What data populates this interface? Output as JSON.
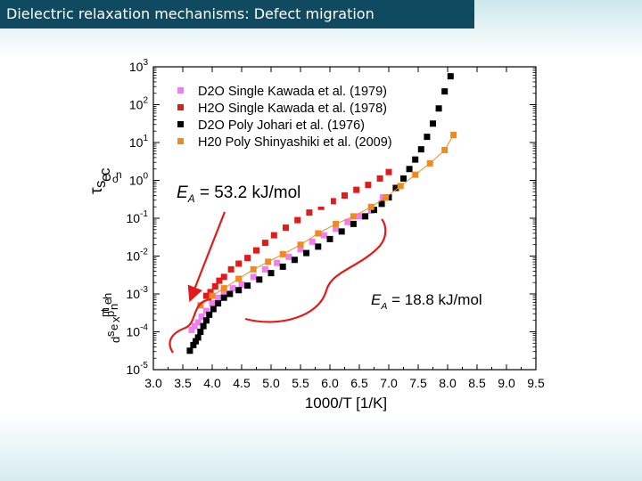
{
  "slide_title": "Dielectric relaxation mechanisms: Defect migration",
  "chart_data": {
    "type": "scatter",
    "xlabel": "1000/T  [1/K]",
    "ylabel": "τ [s]",
    "ylabel_fragments": [
      "τ",
      "s",
      "e",
      "c",
      "o",
      "n",
      "d",
      "s",
      "e",
      "x",
      "p",
      "n",
      "e",
      "t",
      "h",
      "m"
    ],
    "xlim": [
      3.0,
      9.5
    ],
    "ylim_log10": [
      -5,
      3
    ],
    "x_ticks": [
      "3.0",
      "3.5",
      "4.0",
      "4.5",
      "5.0",
      "5.5",
      "6.0",
      "6.5",
      "7.0",
      "7.5",
      "8.0",
      "8.5",
      "9.0",
      "9.5"
    ],
    "y_ticks": [
      {
        "base": "10",
        "exp": "3"
      },
      {
        "base": "10",
        "exp": "2"
      },
      {
        "base": "10",
        "exp": "1"
      },
      {
        "base": "10",
        "exp": "0"
      },
      {
        "base": "10",
        "exp": "-1"
      },
      {
        "base": "10",
        "exp": "-2"
      },
      {
        "base": "10",
        "exp": "-3"
      },
      {
        "base": "10",
        "exp": "-4"
      },
      {
        "base": "10",
        "exp": "-5"
      }
    ],
    "legend_position": "top-left",
    "series": [
      {
        "name": "D2O Single Kawada et al. (1979)",
        "color": "#f07ef0",
        "marker": "square",
        "points": [
          [
            3.65,
            -3.95
          ],
          [
            3.7,
            -3.85
          ],
          [
            3.76,
            -3.75
          ],
          [
            3.82,
            -3.6
          ],
          [
            3.9,
            -3.45
          ],
          [
            4.0,
            -3.25
          ],
          [
            4.1,
            -3.1
          ],
          [
            4.2,
            -2.95
          ],
          [
            4.35,
            -2.85
          ],
          [
            4.5,
            -2.75
          ],
          [
            4.7,
            -2.55
          ],
          [
            4.9,
            -2.35
          ],
          [
            5.1,
            -2.18
          ],
          [
            5.3,
            -2.02
          ],
          [
            5.5,
            -1.82
          ],
          [
            5.7,
            -1.62
          ],
          [
            5.9,
            -1.45
          ],
          [
            6.1,
            -1.28
          ],
          [
            6.3,
            -1.1
          ],
          [
            6.5,
            -0.95
          ],
          [
            6.7,
            -0.8
          ],
          [
            6.9,
            -0.45
          ]
        ]
      },
      {
        "name": "H2O Single Kawada et al. (1978)",
        "color": "#e01b1b",
        "marker": "square",
        "points": [
          [
            3.9,
            -3.05
          ],
          [
            3.97,
            -2.95
          ],
          [
            4.05,
            -2.8
          ],
          [
            4.12,
            -2.65
          ],
          [
            4.2,
            -2.55
          ],
          [
            4.32,
            -2.35
          ],
          [
            4.45,
            -2.2
          ],
          [
            4.6,
            -2.05
          ],
          [
            4.75,
            -1.85
          ],
          [
            4.9,
            -1.65
          ],
          [
            5.05,
            -1.45
          ],
          [
            5.25,
            -1.25
          ],
          [
            5.45,
            -1.05
          ],
          [
            5.65,
            -0.85
          ],
          [
            5.85,
            -0.7
          ],
          [
            6.05,
            -0.55
          ],
          [
            6.25,
            -0.4
          ],
          [
            6.45,
            -0.25
          ],
          [
            6.65,
            -0.12
          ],
          [
            6.85,
            0.05
          ],
          [
            7.0,
            0.22
          ]
        ]
      },
      {
        "name": "D2O Poly   Johari et al. (1976)",
        "color": "#000000",
        "marker": "square",
        "points": [
          [
            3.62,
            -4.5
          ],
          [
            3.68,
            -4.35
          ],
          [
            3.72,
            -4.25
          ],
          [
            3.76,
            -4.15
          ],
          [
            3.8,
            -4.0
          ],
          [
            3.85,
            -3.85
          ],
          [
            3.9,
            -3.7
          ],
          [
            3.95,
            -3.55
          ],
          [
            4.02,
            -3.4
          ],
          [
            4.1,
            -3.25
          ],
          [
            4.2,
            -3.1
          ],
          [
            4.3,
            -3.0
          ],
          [
            4.45,
            -2.9
          ],
          [
            4.6,
            -2.78
          ],
          [
            4.8,
            -2.62
          ],
          [
            5.0,
            -2.45
          ],
          [
            5.2,
            -2.28
          ],
          [
            5.4,
            -2.1
          ],
          [
            5.6,
            -1.92
          ],
          [
            5.8,
            -1.75
          ],
          [
            6.0,
            -1.55
          ],
          [
            6.2,
            -1.35
          ],
          [
            6.4,
            -1.15
          ],
          [
            6.6,
            -0.95
          ],
          [
            6.75,
            -0.78
          ],
          [
            6.88,
            -0.62
          ],
          [
            7.0,
            -0.45
          ],
          [
            7.12,
            -0.2
          ],
          [
            7.25,
            0.05
          ],
          [
            7.35,
            0.3
          ],
          [
            7.45,
            0.55
          ],
          [
            7.55,
            0.82
          ],
          [
            7.65,
            1.15
          ],
          [
            7.75,
            1.5
          ],
          [
            7.85,
            1.9
          ],
          [
            7.95,
            2.35
          ],
          [
            8.05,
            2.75
          ]
        ]
      },
      {
        "name": "H20 Poly   Shinyashiki et al. (2009)",
        "color": "#f08a1c",
        "marker": "square",
        "line": true,
        "points": [
          [
            3.8,
            -3.3
          ],
          [
            4.0,
            -3.05
          ],
          [
            4.2,
            -2.85
          ],
          [
            4.45,
            -2.6
          ],
          [
            4.7,
            -2.35
          ],
          [
            4.95,
            -2.15
          ],
          [
            5.2,
            -1.95
          ],
          [
            5.5,
            -1.7
          ],
          [
            5.8,
            -1.4
          ],
          [
            6.1,
            -1.15
          ],
          [
            6.4,
            -0.95
          ],
          [
            6.7,
            -0.7
          ],
          [
            6.95,
            -0.45
          ],
          [
            7.2,
            -0.15
          ],
          [
            7.45,
            0.15
          ],
          [
            7.7,
            0.45
          ],
          [
            7.95,
            0.8
          ],
          [
            8.1,
            1.2
          ]
        ]
      }
    ],
    "annotations": [
      {
        "label": "E_A = 53.2 kJ/mol",
        "main": "E",
        "sub": "A",
        "rest": " = 53.2 kJ/mol"
      },
      {
        "label": "E_A = 18.8 kJ/mol",
        "main": "E",
        "sub": "A",
        "rest": " = 18.8 kJ/mol"
      }
    ],
    "annotation_color": "#e41a1a"
  }
}
